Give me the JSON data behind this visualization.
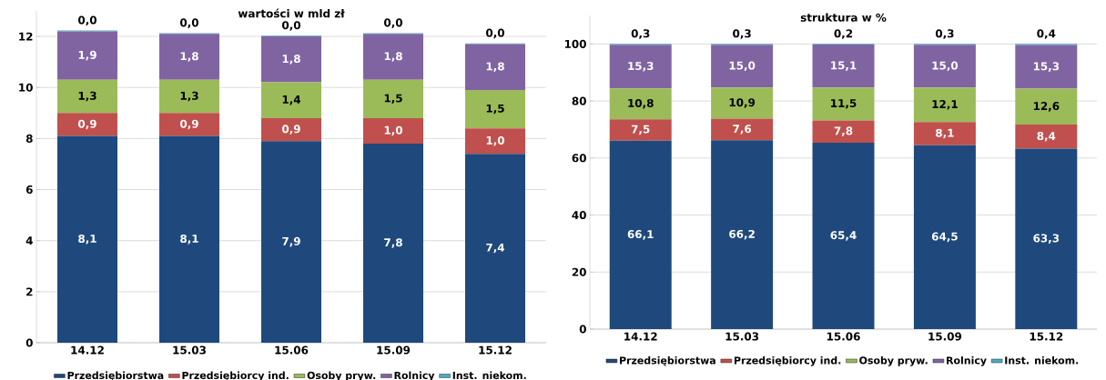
{
  "chart_data": [
    {
      "type": "bar",
      "title": "wartości w mld zł",
      "stacked": true,
      "grid": "y",
      "legend": "bottom",
      "categories": [
        "14.12",
        "15.03",
        "15.06",
        "15.09",
        "15.12"
      ],
      "ylim": [
        0,
        13
      ],
      "yticks": [
        0,
        2,
        4,
        6,
        8,
        10,
        12
      ],
      "series": [
        {
          "name": "Przedsiębiorstwa",
          "color": "#1f497d",
          "values": [
            8.1,
            8.1,
            7.9,
            7.8,
            7.4
          ],
          "value_labels": [
            "8,1",
            "8,1",
            "7,9",
            "7,8",
            "7,4"
          ]
        },
        {
          "name": "Przedsiębiorcy ind.",
          "color": "#c0504d",
          "values": [
            0.9,
            0.9,
            0.9,
            1.0,
            1.0
          ],
          "value_labels": [
            "0,9",
            "0,9",
            "0,9",
            "1,0",
            "1,0"
          ]
        },
        {
          "name": "Osoby pryw.",
          "color": "#9bbb59",
          "values": [
            1.3,
            1.3,
            1.4,
            1.5,
            1.5
          ],
          "value_labels": [
            "1,3",
            "1,3",
            "1,4",
            "1,5",
            "1,5"
          ]
        },
        {
          "name": "Rolnicy",
          "color": "#8064a2",
          "values": [
            1.9,
            1.8,
            1.8,
            1.8,
            1.8
          ],
          "value_labels": [
            "1,9",
            "1,8",
            "1,8",
            "1,8",
            "1,8"
          ]
        },
        {
          "name": "Inst. niekom.",
          "color": "#4bacc6",
          "values": [
            0.03,
            0.03,
            0.03,
            0.03,
            0.03
          ],
          "value_labels": [
            "0,0",
            "0,0",
            "0,0",
            "0,0",
            "0,0"
          ]
        }
      ]
    },
    {
      "type": "bar",
      "title": "struktura w %",
      "stacked": true,
      "grid": "y",
      "legend": "bottom",
      "categories": [
        "14.12",
        "15.03",
        "15.06",
        "15.09",
        "15.12"
      ],
      "ylim": [
        0,
        110
      ],
      "yticks": [
        0,
        20,
        40,
        60,
        80,
        100
      ],
      "series": [
        {
          "name": "Przedsiębiorstwa",
          "color": "#1f497d",
          "values": [
            66.1,
            66.2,
            65.4,
            64.5,
            63.3
          ],
          "value_labels": [
            "66,1",
            "66,2",
            "65,4",
            "64,5",
            "63,3"
          ]
        },
        {
          "name": "Przedsiębiorcy ind.",
          "color": "#c0504d",
          "values": [
            7.5,
            7.6,
            7.8,
            8.1,
            8.4
          ],
          "value_labels": [
            "7,5",
            "7,6",
            "7,8",
            "8,1",
            "8,4"
          ]
        },
        {
          "name": "Osoby pryw.",
          "color": "#9bbb59",
          "values": [
            10.8,
            10.9,
            11.5,
            12.1,
            12.6
          ],
          "value_labels": [
            "10,8",
            "10,9",
            "11,5",
            "12,1",
            "12,6"
          ]
        },
        {
          "name": "Rolnicy",
          "color": "#8064a2",
          "values": [
            15.3,
            15.0,
            15.1,
            15.0,
            15.3
          ],
          "value_labels": [
            "15,3",
            "15,0",
            "15,1",
            "15,0",
            "15,3"
          ]
        },
        {
          "name": "Inst. niekom.",
          "color": "#4bacc6",
          "values": [
            0.3,
            0.3,
            0.2,
            0.3,
            0.4
          ],
          "value_labels": [
            "0,3",
            "0,3",
            "0,2",
            "0,3",
            "0,4"
          ]
        }
      ]
    }
  ]
}
